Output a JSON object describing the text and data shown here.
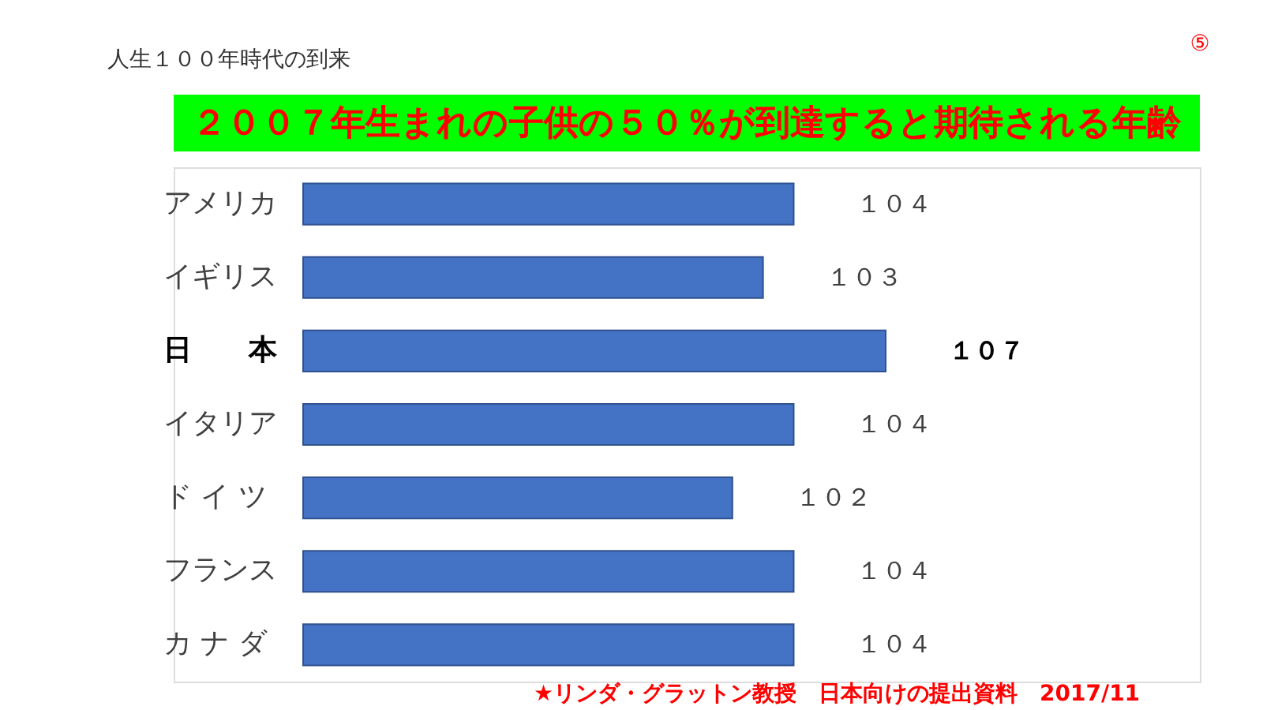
{
  "chart_data": {
    "type": "bar",
    "orientation": "horizontal",
    "title": "２００７年生まれの子供の５０％が到達すると期待される年齢",
    "subtitle": "人生１００年時代の到来",
    "categories": [
      "アメリカ",
      "イギリス",
      "日　　本",
      "イタリア",
      "ド イ ツ",
      "フランス",
      "カ ナ ダ"
    ],
    "values": [
      104,
      103,
      107,
      104,
      102,
      104,
      104
    ],
    "value_labels": [
      "１０４",
      "１０３",
      "１０７",
      "１０４",
      "１０２",
      "１０４",
      "１０４"
    ],
    "color": "#4472c4",
    "xlim": [
      88,
      107
    ],
    "tick_labels": "y",
    "annotations": [
      "⑤",
      "★リンダ・グラットン教授　日本向けの提出資料　2017/11"
    ]
  }
}
